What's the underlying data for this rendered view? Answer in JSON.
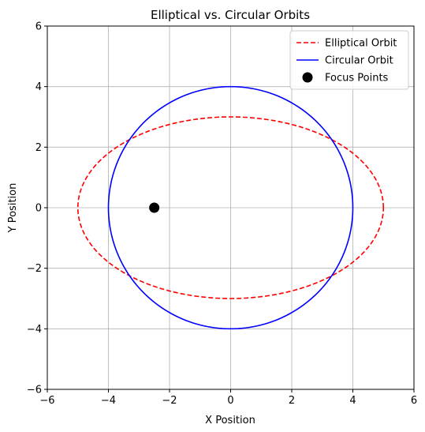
{
  "chart_data": {
    "type": "line",
    "title": "Elliptical vs. Circular Orbits",
    "xlabel": "X Position",
    "ylabel": "Y Position",
    "xlim": [
      -6,
      6
    ],
    "ylim": [
      -6,
      6
    ],
    "xticks": [
      -6,
      -4,
      -2,
      0,
      2,
      4,
      6
    ],
    "yticks": [
      -6,
      -4,
      -2,
      0,
      2,
      4,
      6
    ],
    "grid": true,
    "legend_position": "top-right",
    "series": [
      {
        "name": "Elliptical Orbit",
        "kind": "ellipse",
        "center": [
          0,
          0
        ],
        "semi_major_x": 5,
        "semi_minor_y": 3,
        "color": "#ff0000",
        "line_style": "dashed"
      },
      {
        "name": "Circular Orbit",
        "kind": "circle",
        "center": [
          0,
          0
        ],
        "radius": 4,
        "color": "#0000ff",
        "line_style": "solid"
      },
      {
        "name": "Focus Points",
        "kind": "scatter",
        "points": [
          [
            -2.5,
            0
          ]
        ],
        "color": "#000000",
        "marker": "circle"
      }
    ]
  }
}
